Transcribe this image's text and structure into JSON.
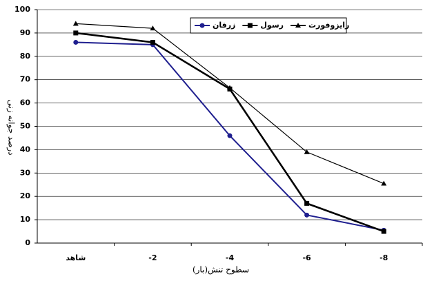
{
  "chart_data": {
    "type": "line",
    "x_label": "سطوح تنش(بار)",
    "y_label": "درصد جوانه زنی",
    "categories": [
      "شاهد",
      "-2",
      "-4",
      "-6",
      "-8"
    ],
    "series": [
      {
        "name": "زرقان",
        "color": "#1f1f8f",
        "marker": "circle",
        "values": [
          86,
          85,
          46,
          12,
          5.5
        ]
      },
      {
        "name": "رسول",
        "color": "#000000",
        "marker": "square",
        "values": [
          90,
          86,
          66,
          17,
          5
        ]
      },
      {
        "name": "رایزوفورت",
        "color": "#000000",
        "marker": "triangle",
        "values": [
          94,
          92,
          66.5,
          39,
          25.5
        ]
      }
    ],
    "ylim": [
      0,
      100
    ],
    "yticks": [
      0,
      10,
      20,
      30,
      40,
      50,
      60,
      70,
      80,
      90,
      100
    ],
    "grid": true
  }
}
